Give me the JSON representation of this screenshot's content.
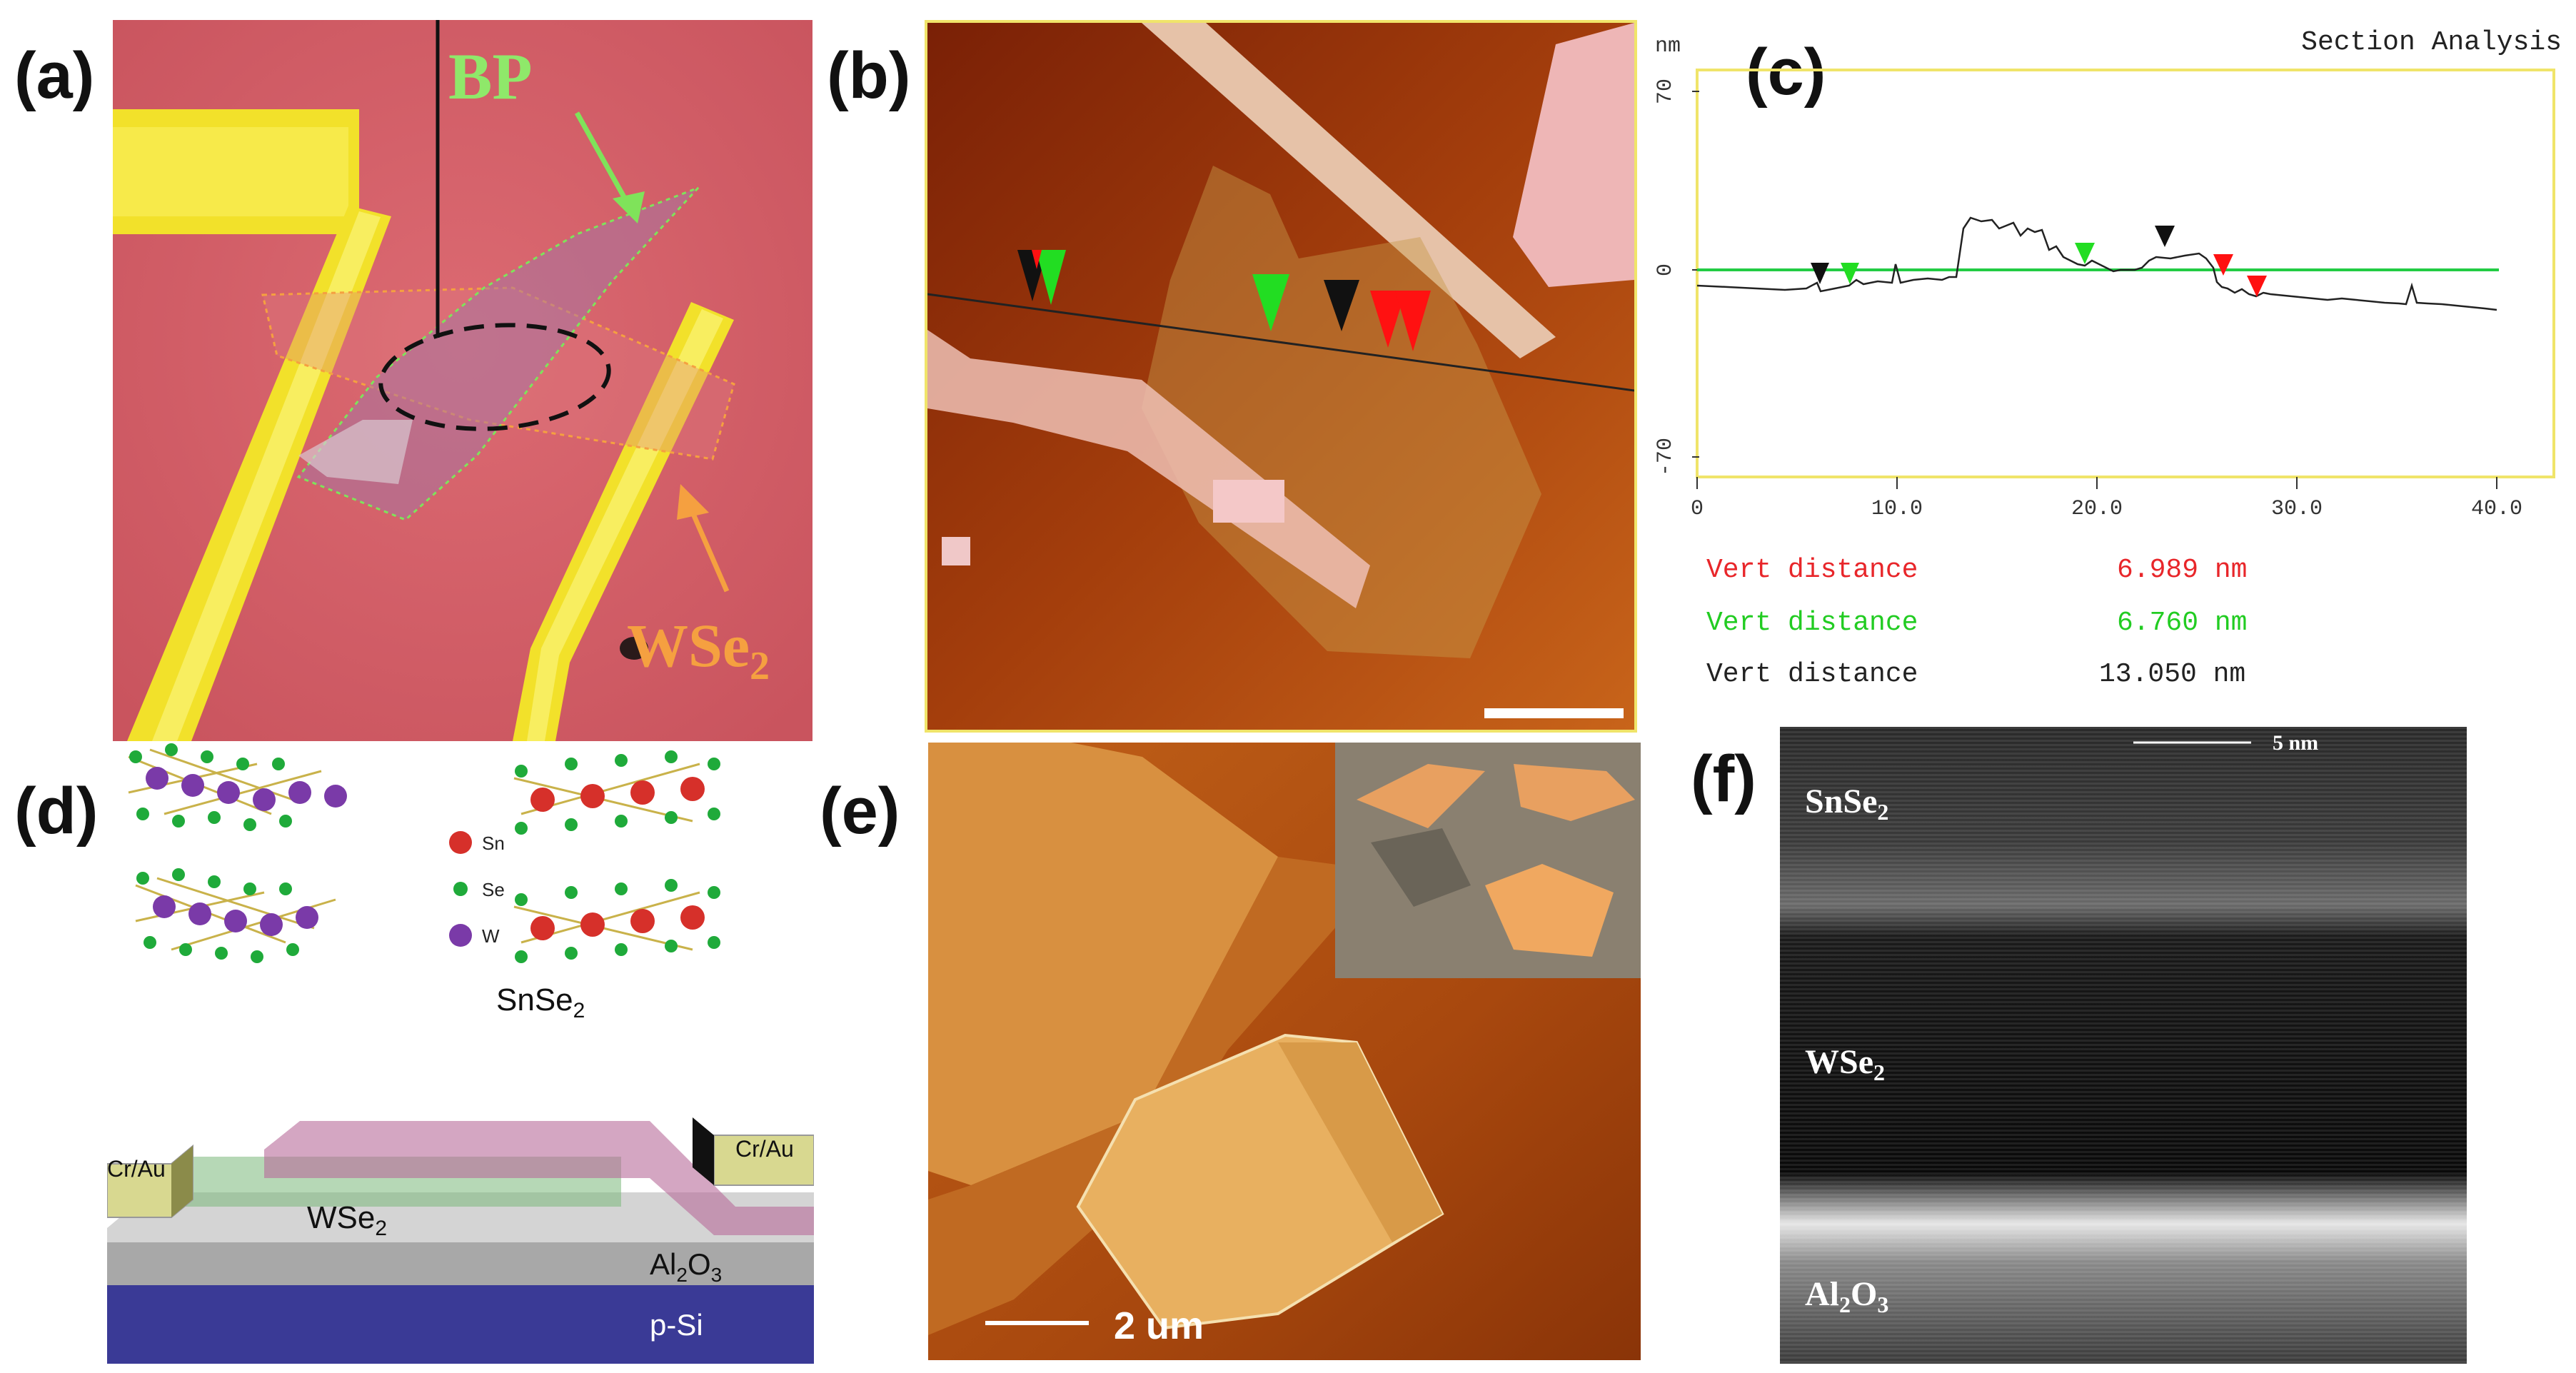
{
  "panels": {
    "a": {
      "label": "(a)",
      "bp_label": "BP",
      "wse2_label": "WSe",
      "wse2_sub": "2",
      "colors": {
        "background": "#d4606a",
        "electrode": "#f2e12a",
        "bp_arrow": "#7fe35a",
        "wse2_arrow": "#f5a040"
      }
    },
    "b": {
      "label": "(b)",
      "colors": {
        "frame": "#f0e46a",
        "background_dark": "#8a2a08",
        "background_light": "#c25a12",
        "flake": "#e8b0b0",
        "marker_black": "#111111",
        "marker_green": "#22dd22",
        "marker_red": "#ff1111"
      }
    },
    "c": {
      "label": "(c)",
      "title": "Section Analysis",
      "y_unit": "nm",
      "y_ticks": [
        "70",
        "0",
        "-70"
      ],
      "x_ticks": [
        "0",
        "10.0",
        "20.0",
        "30.0",
        "40.0"
      ],
      "measurements": [
        {
          "label": "Vert distance",
          "value": "6.989 nm",
          "color": "#e8262a"
        },
        {
          "label": "Vert distance",
          "value": "6.760 nm",
          "color": "#22cc22"
        },
        {
          "label": "Vert distance",
          "value": "13.050 nm",
          "color": "#222222"
        }
      ],
      "colors": {
        "frame": "#f0e46a",
        "baseline": "#22cc44",
        "profile": "#222222"
      }
    },
    "d": {
      "label": "(d)",
      "legend": [
        {
          "symbol": "Sn",
          "color": "#d6302a"
        },
        {
          "symbol": "Se",
          "color": "#1faa3a"
        },
        {
          "symbol": "W",
          "color": "#7a3aa8"
        }
      ],
      "snse2_label": "SnSe",
      "snse2_sub": "2",
      "contact_left": "Cr/Au",
      "contact_right": "Cr/Au",
      "wse2_label": "WSe",
      "wse2_sub": "2",
      "al2o3_main": "Al",
      "al2o3_sub1": "2",
      "al2o3_mid": "O",
      "al2o3_sub2": "3",
      "psi_label": "p-Si",
      "colors": {
        "substrate": "#3a3a96",
        "al2o3": "#b4b4b4",
        "wse2_layer": "#d8d8d8",
        "contact": "#d8d890"
      }
    },
    "e": {
      "label": "(e)",
      "scale_label": "2 um",
      "colors": {
        "background": "#a84a12",
        "flake": "#e8b060",
        "inset_bg": "#8a8070",
        "inset_flake": "#e8a060"
      }
    },
    "f": {
      "label": "(f)",
      "scale_label": "5 nm",
      "layer_top": "SnSe",
      "layer_top_sub": "2",
      "layer_mid": "WSe",
      "layer_mid_sub": "2",
      "layer_bottom_main": "Al",
      "layer_bottom_sub1": "2",
      "layer_bottom_mid": "O",
      "layer_bottom_sub2": "3"
    }
  }
}
